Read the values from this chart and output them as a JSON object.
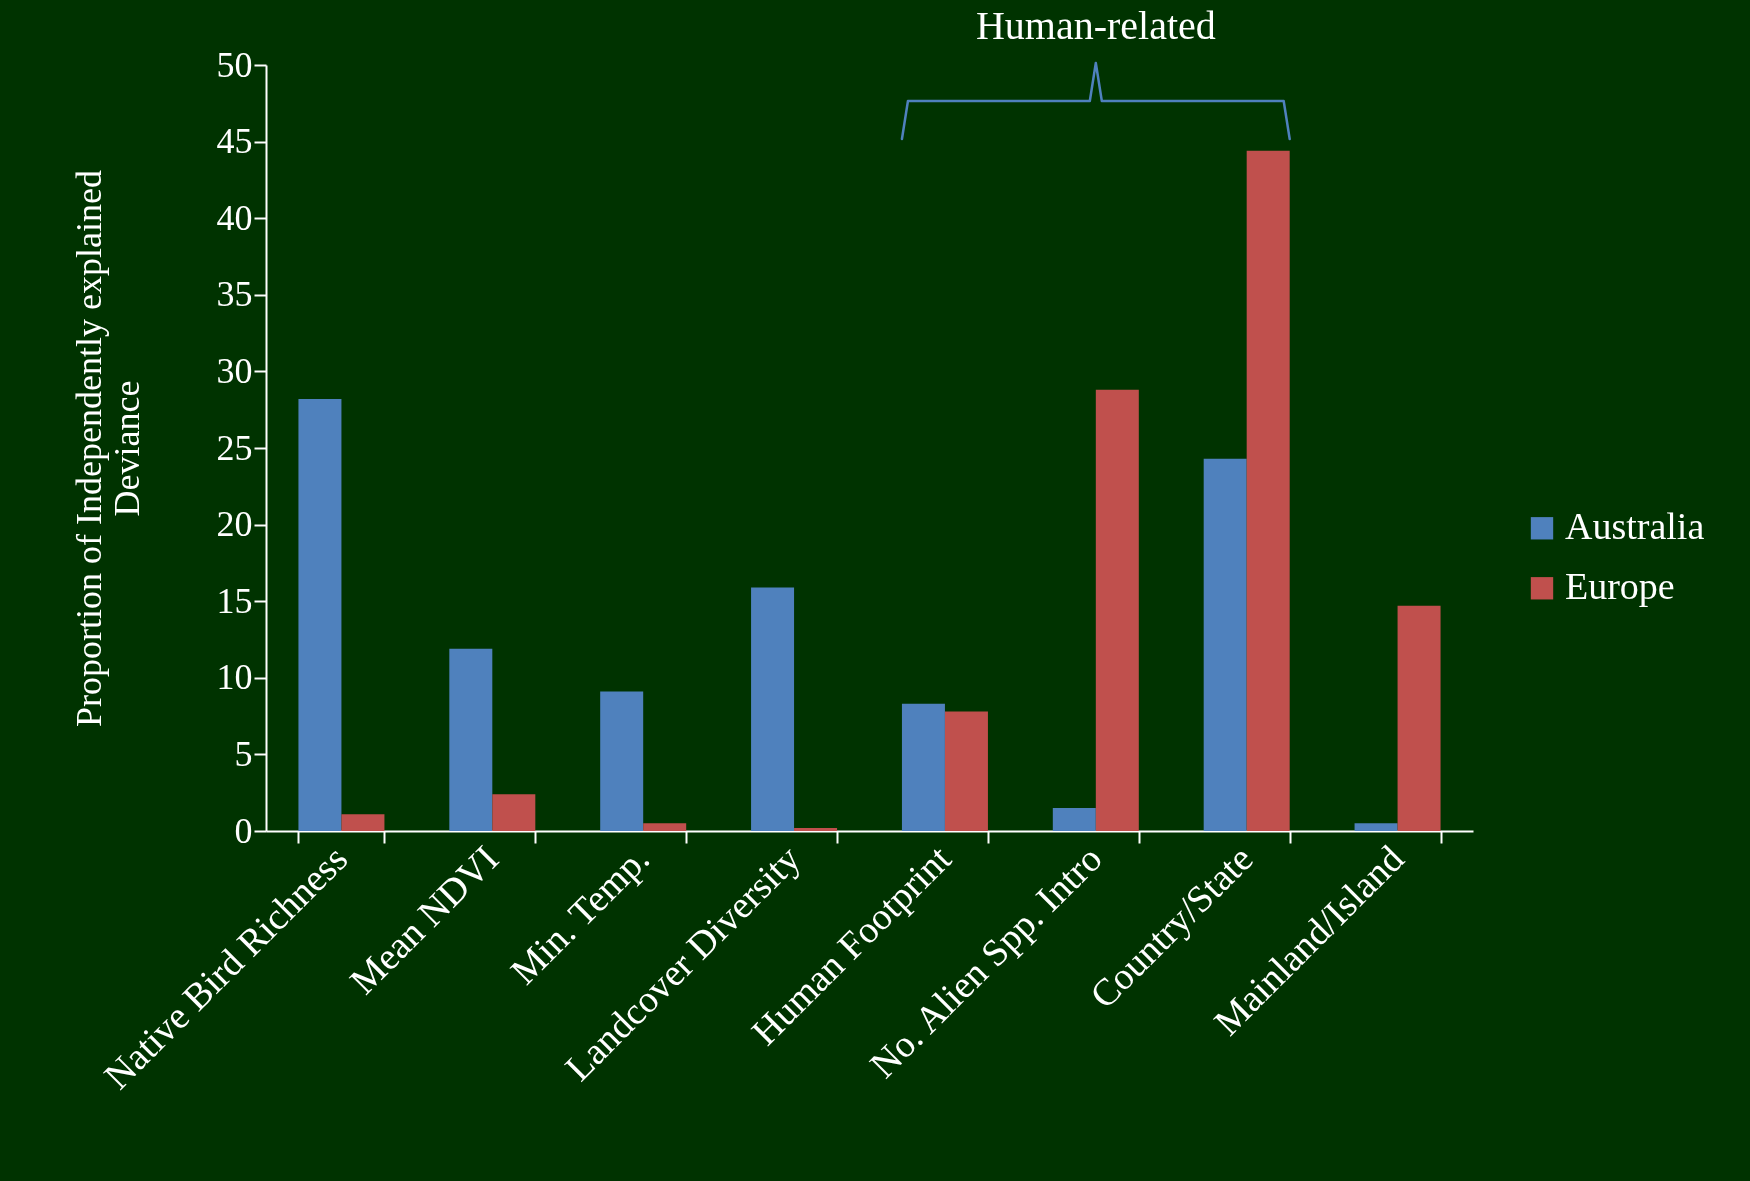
{
  "chart_data": {
    "type": "bar",
    "ylabel": "Proportion of Independently explained Deviance",
    "categories": [
      "Native Bird Richness",
      "Mean NDVI",
      "Min. Temp.",
      "Landcover Diversity",
      "Human Footprint",
      "No. Alien Spp. Intro",
      "Country/State",
      "Mainland/Island"
    ],
    "series": [
      {
        "name": "Australia",
        "color": "#4f81bd",
        "values": [
          28.2,
          11.9,
          9.1,
          15.9,
          8.3,
          1.5,
          24.3,
          0.5
        ]
      },
      {
        "name": "Europe",
        "color": "#c0504d",
        "values": [
          1.1,
          2.4,
          0.5,
          0.2,
          7.8,
          28.8,
          44.4,
          14.7
        ]
      }
    ],
    "ylim": [
      0,
      50
    ],
    "yticks": [
      0,
      5,
      10,
      15,
      20,
      25,
      30,
      35,
      40,
      45,
      50
    ],
    "annotations": [
      "Human-related"
    ],
    "grid": false,
    "legend": "right"
  }
}
